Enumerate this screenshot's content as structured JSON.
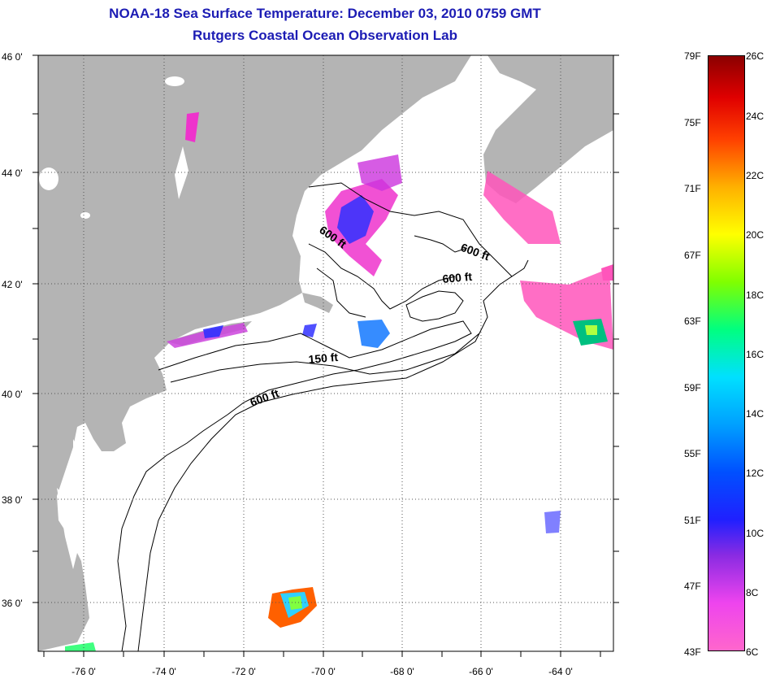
{
  "title": {
    "line1": "NOAA-18 Sea Surface Temperature:  December 03, 2010 0759 GMT",
    "line2": "Rutgers Coastal Ocean Observation Lab"
  },
  "map": {
    "lat_labels": [
      "46 0'",
      "44 0'",
      "42 0'",
      "40 0'",
      "38 0'",
      "36 0'"
    ],
    "lon_labels": [
      "-76 0'",
      "-74 0'",
      "-72 0'",
      "-70 0'",
      "-68 0'",
      "-66 0'",
      "-64 0'"
    ],
    "contour_labels": {
      "c600_gulf_maine": "600 ft",
      "c600_east_a": "600 ft",
      "c600_east_b": "600 ft",
      "c150": "150 ft",
      "c600_shelf": "600 ft"
    },
    "colors": {
      "land": "#b4b4b4",
      "ocean": "#ffffff"
    }
  },
  "colorbar": {
    "fahrenheit": [
      "79F",
      "75F",
      "71F",
      "67F",
      "63F",
      "59F",
      "55F",
      "51F",
      "47F",
      "43F"
    ],
    "celsius": [
      "26C",
      "24C",
      "22C",
      "20C",
      "18C",
      "16C",
      "14C",
      "12C",
      "10C",
      "8C",
      "6C"
    ]
  }
}
